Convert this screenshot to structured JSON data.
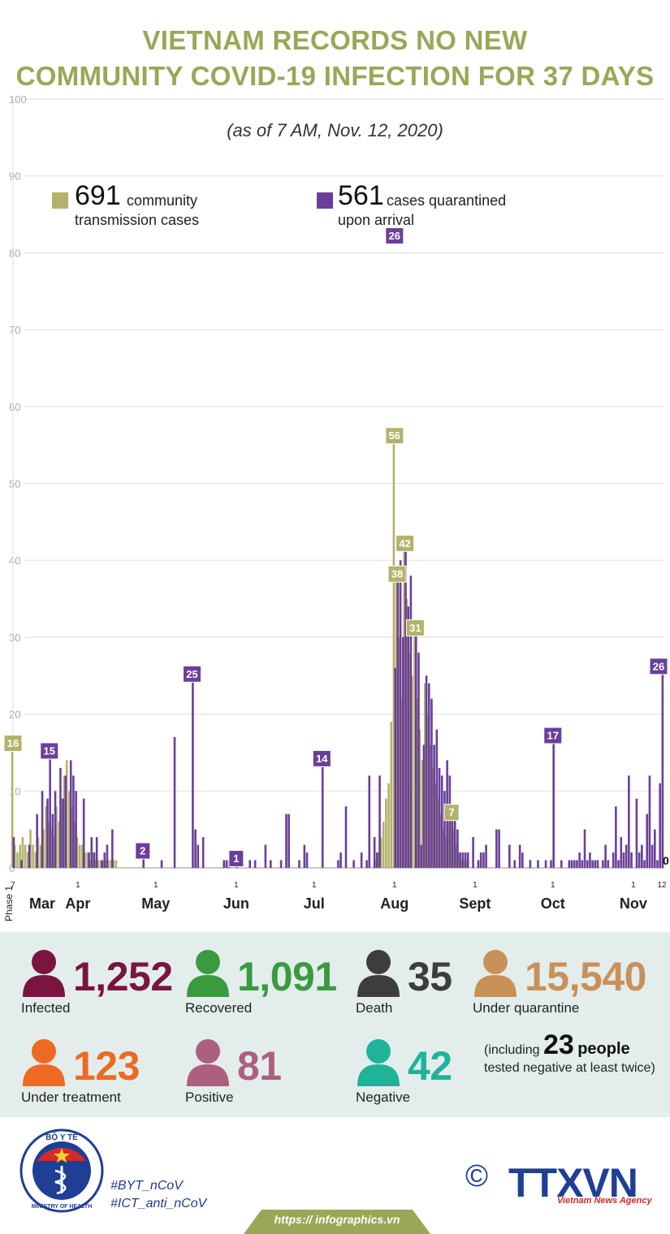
{
  "title_line1": "VIETNAM RECORDS NO NEW",
  "title_line2": "COMMUNITY COVID-19 INFECTION FOR 37 DAYS",
  "subtitle": "(as of 7 AM, Nov. 12, 2020)",
  "legend": {
    "community": {
      "number": "691",
      "label_a": "community",
      "label_b": "transmission cases",
      "color": "#b2b36b"
    },
    "quarantined": {
      "number": "561",
      "label_a": "cases quarantined",
      "label_b": "upon arrival",
      "color": "#6a3f99"
    }
  },
  "chart_data": {
    "type": "bar",
    "title": "VIETNAM RECORDS NO NEW COMMUNITY COVID-19 INFECTION FOR 37 DAYS",
    "xlabel": "",
    "ylabel": "",
    "ylim": [
      0,
      100
    ],
    "yticks": [
      "0",
      "10",
      "20",
      "30",
      "40",
      "50",
      "60",
      "70",
      "80",
      "90",
      "100"
    ],
    "grid": true,
    "phase_label": "Phase 1",
    "x_start_date": "2020-03-07",
    "x_end_date": "2020-11-12",
    "month_labels": [
      {
        "label": "Mar",
        "date": "2020-03-15"
      },
      {
        "label": "Apr",
        "date": "2020-04-01"
      },
      {
        "label": "May",
        "date": "2020-05-01"
      },
      {
        "label": "Jun",
        "date": "2020-06-01"
      },
      {
        "label": "Jul",
        "date": "2020-07-01"
      },
      {
        "label": "Aug",
        "date": "2020-08-01"
      },
      {
        "label": "Sept",
        "date": "2020-09-01"
      },
      {
        "label": "Oct",
        "date": "2020-10-01"
      },
      {
        "label": "Nov",
        "date": "2020-11-01"
      }
    ],
    "day_ticks": [
      {
        "label": "7",
        "date": "2020-03-07"
      },
      {
        "label": "1",
        "date": "2020-04-01"
      },
      {
        "label": "1",
        "date": "2020-05-01"
      },
      {
        "label": "1",
        "date": "2020-06-01"
      },
      {
        "label": "1",
        "date": "2020-07-01"
      },
      {
        "label": "1",
        "date": "2020-08-01"
      },
      {
        "label": "1",
        "date": "2020-09-01"
      },
      {
        "label": "1",
        "date": "2020-10-01"
      },
      {
        "label": "1",
        "date": "2020-11-01"
      },
      {
        "label": "12",
        "date": "2020-11-12"
      }
    ],
    "series": [
      {
        "name": "community transmission cases",
        "color": "#b2b36b",
        "points": [
          [
            "2020-03-07",
            16
          ],
          [
            "2020-03-08",
            3
          ],
          [
            "2020-03-09",
            2
          ],
          [
            "2020-03-10",
            3
          ],
          [
            "2020-03-11",
            4
          ],
          [
            "2020-03-12",
            3
          ],
          [
            "2020-03-13",
            2
          ],
          [
            "2020-03-14",
            5
          ],
          [
            "2020-03-15",
            3
          ],
          [
            "2020-03-16",
            2
          ],
          [
            "2020-03-17",
            4
          ],
          [
            "2020-03-18",
            3
          ],
          [
            "2020-03-19",
            5
          ],
          [
            "2020-03-20",
            8
          ],
          [
            "2020-03-21",
            6
          ],
          [
            "2020-03-22",
            5
          ],
          [
            "2020-03-23",
            4
          ],
          [
            "2020-03-24",
            8
          ],
          [
            "2020-03-25",
            6
          ],
          [
            "2020-03-26",
            9
          ],
          [
            "2020-03-27",
            12
          ],
          [
            "2020-03-28",
            14
          ],
          [
            "2020-03-29",
            10
          ],
          [
            "2020-03-30",
            8
          ],
          [
            "2020-03-31",
            6
          ],
          [
            "2020-04-01",
            4
          ],
          [
            "2020-04-02",
            3
          ],
          [
            "2020-04-03",
            3
          ],
          [
            "2020-04-04",
            2
          ],
          [
            "2020-04-05",
            2
          ],
          [
            "2020-04-06",
            1
          ],
          [
            "2020-04-07",
            2
          ],
          [
            "2020-04-08",
            1
          ],
          [
            "2020-04-09",
            1
          ],
          [
            "2020-04-10",
            1
          ],
          [
            "2020-04-11",
            1
          ],
          [
            "2020-04-12",
            1
          ],
          [
            "2020-04-13",
            1
          ],
          [
            "2020-04-14",
            1
          ],
          [
            "2020-04-15",
            1
          ],
          [
            "2020-04-16",
            1
          ],
          [
            "2020-07-25",
            1
          ],
          [
            "2020-07-26",
            2
          ],
          [
            "2020-07-27",
            4
          ],
          [
            "2020-07-28",
            6
          ],
          [
            "2020-07-29",
            9
          ],
          [
            "2020-07-30",
            11
          ],
          [
            "2020-07-31",
            19
          ],
          [
            "2020-08-01",
            56
          ],
          [
            "2020-08-02",
            38
          ],
          [
            "2020-08-03",
            30
          ],
          [
            "2020-08-04",
            22
          ],
          [
            "2020-08-05",
            42
          ],
          [
            "2020-08-06",
            35
          ],
          [
            "2020-08-07",
            28
          ],
          [
            "2020-08-08",
            25
          ],
          [
            "2020-08-09",
            31
          ],
          [
            "2020-08-10",
            22
          ],
          [
            "2020-08-11",
            18
          ],
          [
            "2020-08-12",
            14
          ],
          [
            "2020-08-13",
            24
          ],
          [
            "2020-08-14",
            20
          ],
          [
            "2020-08-15",
            16
          ],
          [
            "2020-08-16",
            13
          ],
          [
            "2020-08-17",
            11
          ],
          [
            "2020-08-18",
            9
          ],
          [
            "2020-08-19",
            7
          ],
          [
            "2020-08-20",
            5
          ],
          [
            "2020-08-21",
            4
          ],
          [
            "2020-08-22",
            6
          ],
          [
            "2020-08-23",
            7
          ],
          [
            "2020-08-24",
            5
          ],
          [
            "2020-08-25",
            3
          ],
          [
            "2020-08-26",
            2
          ],
          [
            "2020-08-27",
            1
          ],
          [
            "2020-08-28",
            1
          ],
          [
            "2020-08-29",
            1
          ]
        ]
      },
      {
        "name": "cases quarantined upon arrival",
        "color": "#6a3f99",
        "points": [
          [
            "2020-03-07",
            4
          ],
          [
            "2020-03-10",
            1
          ],
          [
            "2020-03-13",
            3
          ],
          [
            "2020-03-16",
            7
          ],
          [
            "2020-03-18",
            10
          ],
          [
            "2020-03-20",
            9
          ],
          [
            "2020-03-21",
            15
          ],
          [
            "2020-03-22",
            7
          ],
          [
            "2020-03-23",
            10
          ],
          [
            "2020-03-25",
            13
          ],
          [
            "2020-03-26",
            9
          ],
          [
            "2020-03-27",
            12
          ],
          [
            "2020-03-29",
            14
          ],
          [
            "2020-03-30",
            12
          ],
          [
            "2020-03-31",
            10
          ],
          [
            "2020-04-03",
            9
          ],
          [
            "2020-04-05",
            2
          ],
          [
            "2020-04-06",
            4
          ],
          [
            "2020-04-07",
            2
          ],
          [
            "2020-04-08",
            4
          ],
          [
            "2020-04-10",
            1
          ],
          [
            "2020-04-11",
            2
          ],
          [
            "2020-04-12",
            3
          ],
          [
            "2020-04-14",
            5
          ],
          [
            "2020-04-26",
            2
          ],
          [
            "2020-05-03",
            1
          ],
          [
            "2020-05-08",
            17
          ],
          [
            "2020-05-15",
            25
          ],
          [
            "2020-05-16",
            5
          ],
          [
            "2020-05-17",
            3
          ],
          [
            "2020-05-19",
            4
          ],
          [
            "2020-05-27",
            1
          ],
          [
            "2020-05-28",
            1
          ],
          [
            "2020-05-29",
            1
          ],
          [
            "2020-06-01",
            1
          ],
          [
            "2020-06-06",
            1
          ],
          [
            "2020-06-08",
            1
          ],
          [
            "2020-06-12",
            3
          ],
          [
            "2020-06-14",
            1
          ],
          [
            "2020-06-18",
            1
          ],
          [
            "2020-06-20",
            7
          ],
          [
            "2020-06-21",
            7
          ],
          [
            "2020-06-25",
            1
          ],
          [
            "2020-06-27",
            3
          ],
          [
            "2020-06-28",
            2
          ],
          [
            "2020-07-04",
            14
          ],
          [
            "2020-07-10",
            1
          ],
          [
            "2020-07-11",
            2
          ],
          [
            "2020-07-13",
            8
          ],
          [
            "2020-07-16",
            1
          ],
          [
            "2020-07-19",
            2
          ],
          [
            "2020-07-21",
            1
          ],
          [
            "2020-07-22",
            12
          ],
          [
            "2020-07-24",
            4
          ],
          [
            "2020-07-25",
            2
          ],
          [
            "2020-07-26",
            12
          ],
          [
            "2020-08-01",
            26
          ],
          [
            "2020-08-02",
            38
          ],
          [
            "2020-08-03",
            40
          ],
          [
            "2020-08-04",
            30
          ],
          [
            "2020-08-05",
            43
          ],
          [
            "2020-08-06",
            34
          ],
          [
            "2020-08-07",
            38
          ],
          [
            "2020-08-09",
            31
          ],
          [
            "2020-08-10",
            28
          ],
          [
            "2020-08-11",
            3
          ],
          [
            "2020-08-12",
            16
          ],
          [
            "2020-08-13",
            25
          ],
          [
            "2020-08-14",
            24
          ],
          [
            "2020-08-15",
            22
          ],
          [
            "2020-08-16",
            16
          ],
          [
            "2020-08-17",
            18
          ],
          [
            "2020-08-18",
            13
          ],
          [
            "2020-08-19",
            12
          ],
          [
            "2020-08-20",
            10
          ],
          [
            "2020-08-21",
            14
          ],
          [
            "2020-08-22",
            12
          ],
          [
            "2020-08-23",
            7
          ],
          [
            "2020-08-24",
            8
          ],
          [
            "2020-08-25",
            5
          ],
          [
            "2020-08-26",
            2
          ],
          [
            "2020-08-27",
            2
          ],
          [
            "2020-08-28",
            2
          ],
          [
            "2020-08-29",
            2
          ],
          [
            "2020-08-31",
            4
          ],
          [
            "2020-09-02",
            1
          ],
          [
            "2020-09-03",
            2
          ],
          [
            "2020-09-04",
            2
          ],
          [
            "2020-09-05",
            3
          ],
          [
            "2020-09-09",
            5
          ],
          [
            "2020-09-10",
            5
          ],
          [
            "2020-09-14",
            3
          ],
          [
            "2020-09-16",
            1
          ],
          [
            "2020-09-18",
            3
          ],
          [
            "2020-09-19",
            2
          ],
          [
            "2020-09-22",
            1
          ],
          [
            "2020-09-25",
            1
          ],
          [
            "2020-09-28",
            1
          ],
          [
            "2020-09-30",
            1
          ],
          [
            "2020-10-01",
            17
          ],
          [
            "2020-10-04",
            1
          ],
          [
            "2020-10-07",
            1
          ],
          [
            "2020-10-08",
            1
          ],
          [
            "2020-10-09",
            1
          ],
          [
            "2020-10-10",
            1
          ],
          [
            "2020-10-11",
            2
          ],
          [
            "2020-10-12",
            1
          ],
          [
            "2020-10-13",
            5
          ],
          [
            "2020-10-14",
            1
          ],
          [
            "2020-10-15",
            2
          ],
          [
            "2020-10-16",
            1
          ],
          [
            "2020-10-17",
            1
          ],
          [
            "2020-10-18",
            1
          ],
          [
            "2020-10-20",
            1
          ],
          [
            "2020-10-21",
            3
          ],
          [
            "2020-10-22",
            1
          ],
          [
            "2020-10-24",
            2
          ],
          [
            "2020-10-25",
            8
          ],
          [
            "2020-10-26",
            1
          ],
          [
            "2020-10-27",
            4
          ],
          [
            "2020-10-28",
            2
          ],
          [
            "2020-10-29",
            3
          ],
          [
            "2020-10-30",
            12
          ],
          [
            "2020-10-31",
            2
          ],
          [
            "2020-11-02",
            9
          ],
          [
            "2020-11-03",
            2
          ],
          [
            "2020-11-04",
            3
          ],
          [
            "2020-11-05",
            1
          ],
          [
            "2020-11-06",
            7
          ],
          [
            "2020-11-07",
            12
          ],
          [
            "2020-11-08",
            3
          ],
          [
            "2020-11-09",
            5
          ],
          [
            "2020-11-10",
            1
          ],
          [
            "2020-11-11",
            11
          ],
          [
            "2020-11-12",
            26
          ]
        ]
      }
    ],
    "annotations": [
      {
        "label": "16",
        "date": "2020-03-07",
        "value": 16,
        "series": 0
      },
      {
        "label": "15",
        "date": "2020-03-21",
        "value": 15,
        "series": 1
      },
      {
        "label": "2",
        "date": "2020-04-26",
        "value": 2,
        "series": 1
      },
      {
        "label": "25",
        "date": "2020-05-15",
        "value": 25,
        "series": 1
      },
      {
        "label": "1",
        "date": "2020-06-01",
        "value": 1,
        "series": 1
      },
      {
        "label": "14",
        "date": "2020-07-04",
        "value": 14,
        "series": 1
      },
      {
        "label": "26",
        "date": "2020-08-01",
        "value": 82,
        "series": 1
      },
      {
        "label": "56",
        "date": "2020-08-01",
        "value": 56,
        "series": 0
      },
      {
        "label": "38",
        "date": "2020-08-02",
        "value": 38,
        "series": 0
      },
      {
        "label": "42",
        "date": "2020-08-05",
        "value": 42,
        "series": 0
      },
      {
        "label": "31",
        "date": "2020-08-09",
        "value": 31,
        "series": 0
      },
      {
        "label": "7",
        "date": "2020-08-23",
        "value": 7,
        "series": 0
      },
      {
        "label": "17",
        "date": "2020-10-01",
        "value": 17,
        "series": 1
      },
      {
        "label": "26",
        "date": "2020-11-12",
        "value": 26,
        "series": 1
      },
      {
        "label": "0",
        "date": "2020-11-12",
        "value": 0,
        "series": -1
      }
    ]
  },
  "stats": [
    {
      "value": "1,252",
      "label": "Infected",
      "color": "#7a1540",
      "icon": "person-icon"
    },
    {
      "value": "1,091",
      "label": "Recovered",
      "color": "#3a9a40",
      "icon": "person-icon"
    },
    {
      "value": "35",
      "label": "Death",
      "color": "#3d3d3d",
      "icon": "person-icon"
    },
    {
      "value": "15,540",
      "label": "Under quarantine",
      "color": "#c8915a",
      "icon": "person-icon"
    },
    {
      "value": "123",
      "label": "Under treatment",
      "color": "#ee6a24",
      "icon": "person-icon"
    },
    {
      "value": "81",
      "label": "Positive",
      "color": "#ad5f7e",
      "icon": "person-icon"
    },
    {
      "value": "42",
      "label": "Negative",
      "color": "#1fb39a",
      "icon": "person-icon"
    }
  ],
  "note": {
    "prefix": "(including",
    "number": "23",
    "people": "people",
    "suffix": "tested negative at least twice)"
  },
  "footer": {
    "logo_text_top": "BỘ Y TẾ",
    "logo_text_bottom": "MINISTRY OF HEALTH",
    "hashtag1": "#BYT_nCoV",
    "hashtag2": "#ICT_anti_nCoV",
    "url": "https:// infographics.vn",
    "agency": "TTXVN",
    "agency_sub": "Vietnam News Agency",
    "copyright": "©"
  }
}
